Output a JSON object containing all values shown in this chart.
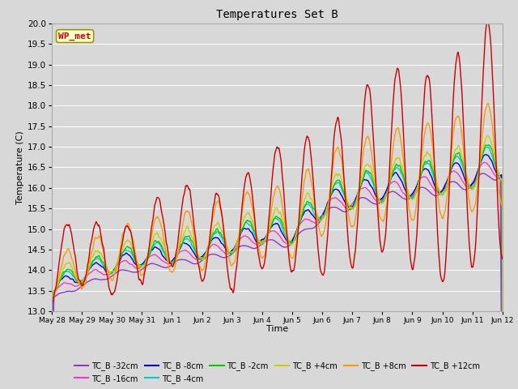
{
  "title": "Temperatures Set B",
  "xlabel": "Time",
  "ylabel": "Temperature (C)",
  "ylim": [
    13.0,
    20.0
  ],
  "yticks": [
    13.0,
    13.5,
    14.0,
    14.5,
    15.0,
    15.5,
    16.0,
    16.5,
    17.0,
    17.5,
    18.0,
    18.5,
    19.0,
    19.5,
    20.0
  ],
  "series_colors": {
    "TC_B -32cm": "#9933cc",
    "TC_B -16cm": "#ff33cc",
    "TC_B -8cm": "#0000cc",
    "TC_B -4cm": "#00cccc",
    "TC_B -2cm": "#00cc00",
    "TC_B +4cm": "#cccc00",
    "TC_B +8cm": "#ff9900",
    "TC_B +12cm": "#cc0000"
  },
  "series_order": [
    "TC_B -32cm",
    "TC_B -16cm",
    "TC_B -8cm",
    "TC_B -4cm",
    "TC_B -2cm",
    "TC_B +4cm",
    "TC_B +8cm",
    "TC_B +12cm"
  ],
  "xtick_labels": [
    "May 28",
    "May 29",
    "May 30",
    "May 31",
    "Jun 1",
    "Jun 2",
    "Jun 3",
    "Jun 4",
    "Jun 5",
    "Jun 6",
    "Jun 7",
    "Jun 8",
    "Jun 9",
    "Jun 10",
    "Jun 11",
    "Jun 12"
  ],
  "xtick_days": [
    0,
    1,
    2,
    3,
    4,
    5,
    6,
    7,
    8,
    9,
    10,
    11,
    12,
    13,
    14,
    15
  ],
  "wp_met_color": "#cc0000",
  "wp_met_bg": "#ffffcc",
  "wp_met_border": "#999900",
  "bg_color": "#d8d8d8",
  "plot_bg": "#d8d8d8",
  "grid_color": "#ffffff",
  "lw": 1.0
}
